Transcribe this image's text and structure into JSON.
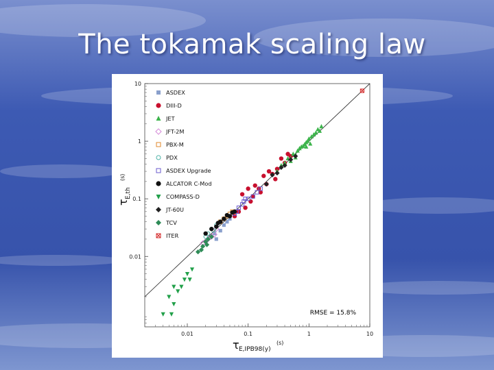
{
  "slide": {
    "title": "The tokamak scaling law"
  },
  "colors": {
    "ASDEX": "#8aa0cc",
    "DIII-D": "#c8102e",
    "JET": "#3cb44b",
    "JFT-2M": "#d58ad8",
    "PBX-M": "#e08a2c",
    "PDX": "#4fb3a8",
    "ASDEX Upgrade": "#6a5acd",
    "ALCATOR C-Mod": "#111111",
    "COMPASS-D": "#22a04a",
    "JT-60U": "#222222",
    "TCV": "#2e8b57",
    "ITER": "#d42a2a"
  },
  "chart_data": {
    "type": "scatter",
    "xscale": "log",
    "yscale": "log",
    "xlim": [
      0.002,
      10
    ],
    "ylim": [
      0.0006,
      10
    ],
    "xticks": [
      "0.01",
      "0.1",
      "1",
      "10"
    ],
    "yticks": [
      "0.01",
      "0.1",
      "1",
      "10"
    ],
    "xlabel": {
      "symbol": "τ",
      "sub": "E,IPB98(y)",
      "unit": "(s)"
    },
    "ylabel": {
      "symbol": "τ",
      "sub": "E,th",
      "unit": "(s)"
    },
    "annotation": "RMSE = 15.8%",
    "reference_line": "y = x",
    "legend_position": "top-left",
    "series": [
      {
        "name": "ASDEX",
        "marker": "square-filled",
        "color": "#8aa0cc",
        "points": [
          [
            0.03,
            0.02
          ],
          [
            0.035,
            0.028
          ],
          [
            0.04,
            0.035
          ],
          [
            0.05,
            0.045
          ],
          [
            0.06,
            0.05
          ],
          [
            0.045,
            0.04
          ],
          [
            0.028,
            0.025
          ]
        ]
      },
      {
        "name": "DIII-D",
        "marker": "circle-filled",
        "color": "#c8102e",
        "points": [
          [
            0.09,
            0.07
          ],
          [
            0.12,
            0.11
          ],
          [
            0.15,
            0.15
          ],
          [
            0.2,
            0.18
          ],
          [
            0.25,
            0.27
          ],
          [
            0.3,
            0.33
          ],
          [
            0.4,
            0.42
          ],
          [
            0.5,
            0.55
          ],
          [
            0.08,
            0.12
          ],
          [
            0.1,
            0.15
          ],
          [
            0.18,
            0.25
          ],
          [
            0.22,
            0.3
          ],
          [
            0.35,
            0.5
          ],
          [
            0.45,
            0.6
          ],
          [
            0.16,
            0.13
          ],
          [
            0.11,
            0.09
          ],
          [
            0.06,
            0.05
          ],
          [
            0.07,
            0.06
          ],
          [
            0.13,
            0.17
          ],
          [
            0.28,
            0.22
          ]
        ]
      },
      {
        "name": "JET",
        "marker": "triangle-up-filled",
        "color": "#3cb44b",
        "points": [
          [
            0.3,
            0.3
          ],
          [
            0.4,
            0.42
          ],
          [
            0.5,
            0.5
          ],
          [
            0.6,
            0.58
          ],
          [
            0.7,
            0.75
          ],
          [
            0.8,
            0.82
          ],
          [
            0.9,
            0.95
          ],
          [
            1.0,
            1.1
          ],
          [
            1.2,
            1.3
          ],
          [
            1.4,
            1.6
          ],
          [
            1.6,
            1.8
          ],
          [
            0.55,
            0.6
          ],
          [
            0.65,
            0.68
          ],
          [
            0.75,
            0.8
          ],
          [
            0.85,
            0.88
          ],
          [
            0.95,
            1.0
          ],
          [
            1.1,
            1.2
          ],
          [
            1.3,
            1.4
          ],
          [
            1.5,
            1.5
          ],
          [
            0.45,
            0.5
          ],
          [
            0.35,
            0.38
          ],
          [
            1.05,
            0.9
          ],
          [
            0.6,
            0.52
          ],
          [
            0.5,
            0.45
          ],
          [
            0.9,
            0.8
          ]
        ]
      },
      {
        "name": "JFT-2M",
        "marker": "diamond-open",
        "color": "#d58ad8",
        "points": [
          [
            0.02,
            0.018
          ],
          [
            0.025,
            0.022
          ],
          [
            0.03,
            0.03
          ],
          [
            0.018,
            0.017
          ],
          [
            0.022,
            0.02
          ],
          [
            0.028,
            0.024
          ]
        ]
      },
      {
        "name": "PBX-M",
        "marker": "square-open",
        "color": "#e08a2c",
        "points": [
          [
            0.04,
            0.045
          ],
          [
            0.05,
            0.055
          ],
          [
            0.045,
            0.05
          ],
          [
            0.055,
            0.06
          ],
          [
            0.035,
            0.04
          ]
        ]
      },
      {
        "name": "PDX",
        "marker": "circle-open",
        "color": "#4fb3a8",
        "points": [
          [
            0.02,
            0.022
          ],
          [
            0.025,
            0.03
          ],
          [
            0.03,
            0.035
          ],
          [
            0.022,
            0.025
          ],
          [
            0.027,
            0.028
          ]
        ]
      },
      {
        "name": "ASDEX Upgrade",
        "marker": "square-open",
        "color": "#6a5acd",
        "points": [
          [
            0.06,
            0.055
          ],
          [
            0.07,
            0.07
          ],
          [
            0.08,
            0.08
          ],
          [
            0.09,
            0.1
          ],
          [
            0.1,
            0.1
          ],
          [
            0.12,
            0.11
          ],
          [
            0.14,
            0.13
          ],
          [
            0.16,
            0.15
          ],
          [
            0.065,
            0.06
          ],
          [
            0.085,
            0.09
          ]
        ]
      },
      {
        "name": "ALCATOR C-Mod",
        "marker": "circle-filled",
        "color": "#111111",
        "points": [
          [
            0.02,
            0.025
          ],
          [
            0.025,
            0.03
          ],
          [
            0.03,
            0.033
          ],
          [
            0.035,
            0.04
          ],
          [
            0.04,
            0.045
          ],
          [
            0.05,
            0.05
          ],
          [
            0.06,
            0.06
          ],
          [
            0.045,
            0.052
          ],
          [
            0.032,
            0.038
          ],
          [
            0.055,
            0.058
          ]
        ]
      },
      {
        "name": "COMPASS-D",
        "marker": "triangle-down-filled",
        "color": "#22a04a",
        "points": [
          [
            0.004,
            0.001
          ],
          [
            0.005,
            0.002
          ],
          [
            0.006,
            0.0015
          ],
          [
            0.007,
            0.0025
          ],
          [
            0.008,
            0.003
          ],
          [
            0.009,
            0.004
          ],
          [
            0.01,
            0.005
          ],
          [
            0.012,
            0.006
          ],
          [
            0.011,
            0.004
          ],
          [
            0.006,
            0.003
          ],
          [
            0.0055,
            0.001
          ]
        ]
      },
      {
        "name": "JT-60U",
        "marker": "diamond-filled",
        "color": "#222222",
        "points": [
          [
            0.2,
            0.18
          ],
          [
            0.25,
            0.26
          ],
          [
            0.3,
            0.28
          ],
          [
            0.35,
            0.35
          ],
          [
            0.4,
            0.38
          ],
          [
            0.5,
            0.48
          ],
          [
            0.6,
            0.55
          ]
        ]
      },
      {
        "name": "TCV",
        "marker": "diamond-filled",
        "color": "#2e8b57",
        "points": [
          [
            0.015,
            0.012
          ],
          [
            0.018,
            0.015
          ],
          [
            0.02,
            0.018
          ],
          [
            0.022,
            0.02
          ],
          [
            0.025,
            0.022
          ],
          [
            0.017,
            0.013
          ],
          [
            0.021,
            0.016
          ]
        ]
      },
      {
        "name": "ITER",
        "marker": "square-x",
        "color": "#d42a2a",
        "points": [
          [
            7.5,
            7.5
          ]
        ]
      }
    ]
  }
}
